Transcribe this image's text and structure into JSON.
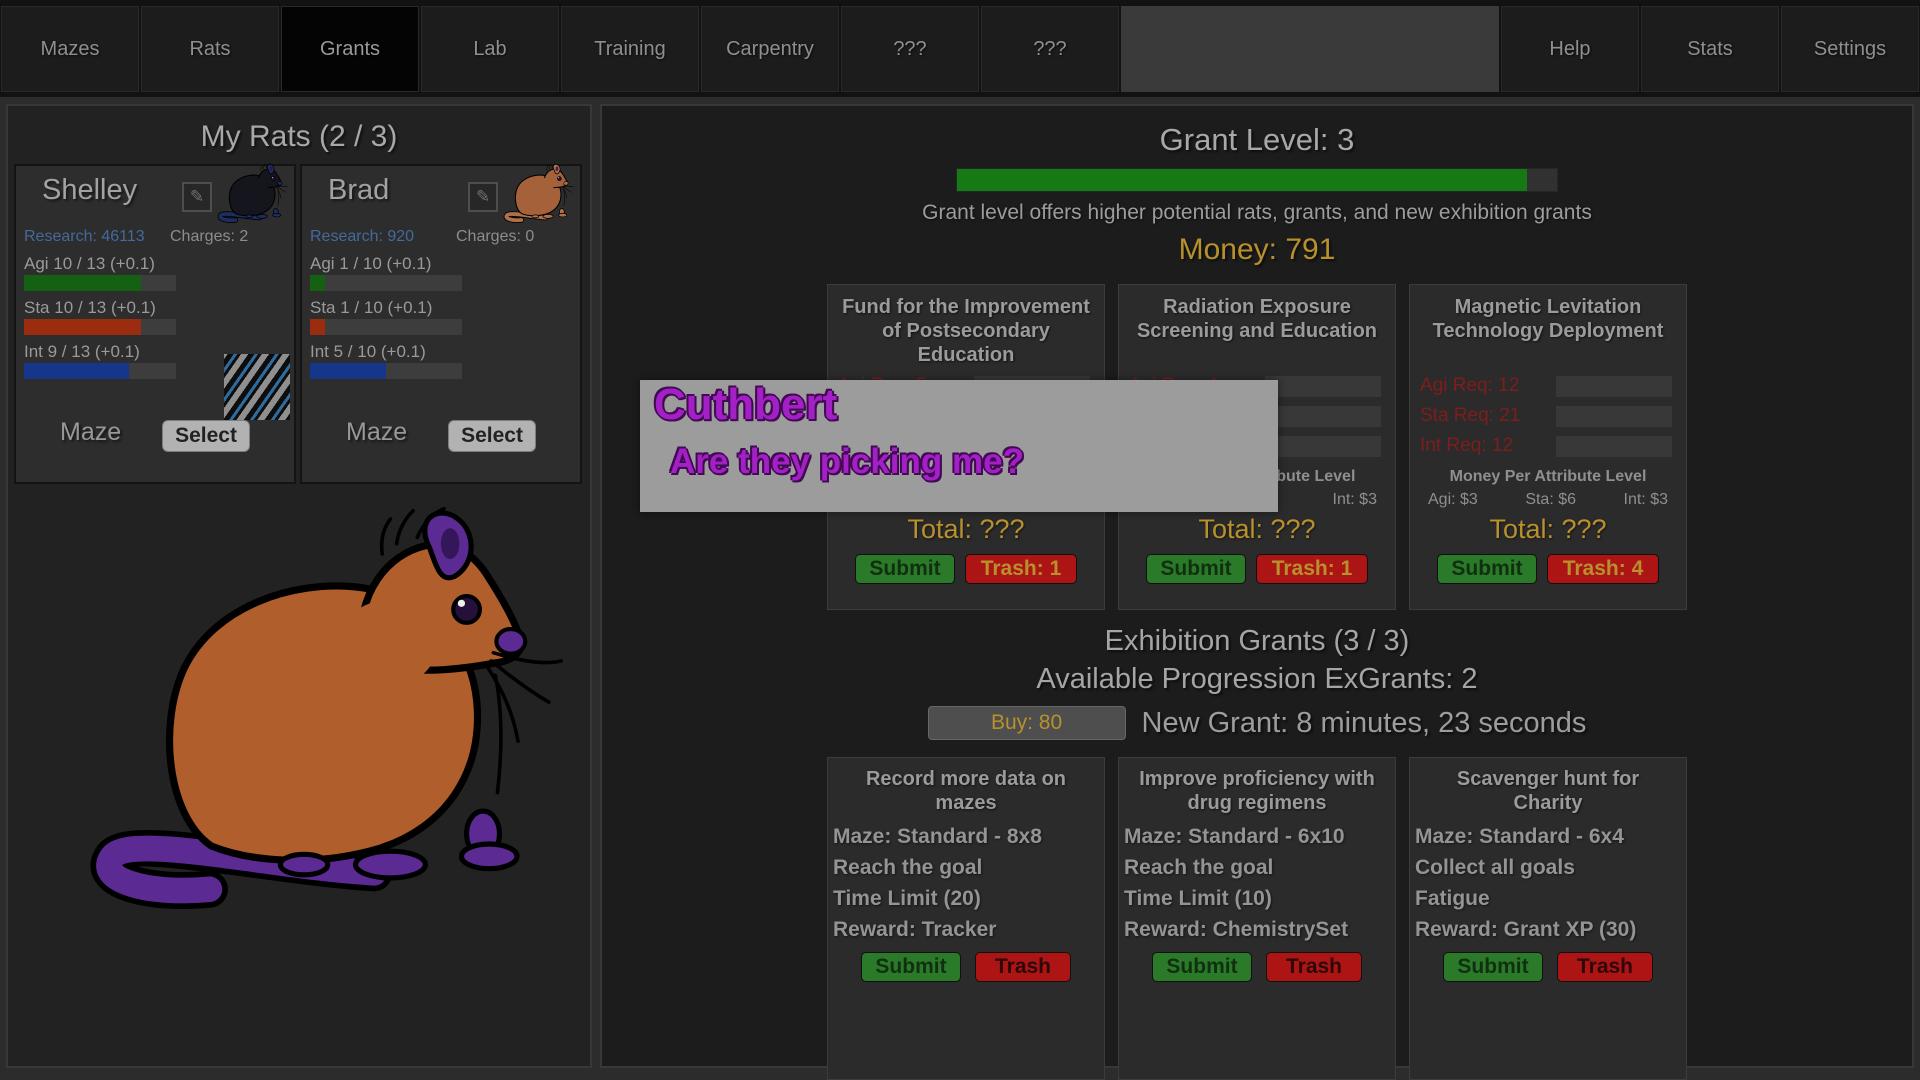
{
  "colors": {
    "level-green": "#157a15",
    "money-gold": "#b8912c",
    "link-blue": "#44699d",
    "req-red": "#7e1d1d",
    "submit-green": "#2a7a2a",
    "trash-red": "#ad1414",
    "popup-purple": "#a320c6",
    "bar-agi": "#146114",
    "bar-sta": "#9c2c10",
    "bar-int": "#16368c",
    "rat-shelley-fur": "#15151d",
    "rat-shelley-accent": "#1c2d5e",
    "rat-brad-fur": "#a5613a",
    "rat-brad-accent": "#b0714a",
    "rat-big-fur": "#b05f2c",
    "rat-big-accent": "#5b2a92"
  },
  "icons": {
    "edit": "✎"
  },
  "nav": {
    "tabs": [
      "Mazes",
      "Rats",
      "Grants",
      "Lab",
      "Training",
      "Carpentry",
      "???",
      "???"
    ],
    "right_tabs": [
      "Help",
      "Stats",
      "Settings"
    ],
    "active": "Grants"
  },
  "rats_panel": {
    "title": "My Rats (2 / 3)",
    "maze_label": "Maze",
    "select_label": "Select",
    "cards": [
      {
        "name": "Shelley",
        "research": "Research: 46113",
        "charges": "Charges: 2",
        "stats": [
          {
            "label": "Agi 10 / 13 (+0.1)",
            "pct": 77
          },
          {
            "label": "Sta 10 / 13 (+0.1)",
            "pct": 77
          },
          {
            "label": "Int 9 / 13 (+0.1)",
            "pct": 69
          }
        ]
      },
      {
        "name": "Brad",
        "research": "Research: 920",
        "charges": "Charges: 0",
        "stats": [
          {
            "label": "Agi 1 / 10 (+0.1)",
            "pct": 10
          },
          {
            "label": "Sta 1 / 10 (+0.1)",
            "pct": 10
          },
          {
            "label": "Int 5 / 10 (+0.1)",
            "pct": 50
          }
        ]
      }
    ]
  },
  "grant_panel": {
    "title": "Grant Level: 3",
    "progress_pct": 95,
    "subtitle": "Grant level offers higher potential rats, grants, and new exhibition grants",
    "money": "Money: 791",
    "grants": [
      {
        "title": "Fund for the Improvement of Postsecondary Education",
        "reqs": [
          {
            "label": "Agi Req: 5"
          },
          {
            "label": ""
          },
          {
            "label": ""
          }
        ],
        "money_header": "",
        "money_values": [
          "",
          "",
          ""
        ],
        "total": "Total: ???",
        "submit": "Submit",
        "trash": "Trash: 1"
      },
      {
        "title": "Radiation Exposure Screening and Education",
        "reqs": [
          {
            "label": "Agi Req: 4"
          },
          {
            "label": ""
          },
          {
            "label": ""
          }
        ],
        "money_header": "Money Per Attribute Level",
        "money_values": [
          "",
          "",
          "Int: $3"
        ],
        "total": "Total: ???",
        "submit": "Submit",
        "trash": "Trash: 1"
      },
      {
        "title": "Magnetic Levitation Technology Deployment",
        "reqs": [
          {
            "label": "Agi Req: 12"
          },
          {
            "label": "Sta Req: 21"
          },
          {
            "label": "Int Req: 12"
          }
        ],
        "money_header": "Money Per Attribute Level",
        "money_values": [
          "Agi: $3",
          "Sta: $6",
          "Int: $3"
        ],
        "total": "Total: ???",
        "submit": "Submit",
        "trash": "Trash: 4"
      }
    ]
  },
  "popup": {
    "title": "Cuthbert",
    "message": "Are they picking me?"
  },
  "exhibition": {
    "title": "Exhibition Grants (3 / 3)",
    "available": "Available Progression ExGrants: 2",
    "buy_label": "Buy: 80",
    "new_grant": "New Grant: 8 minutes, 23 seconds",
    "cards": [
      {
        "title": "Record more data on mazes",
        "rows": [
          "Maze: Standard - 8x8",
          "Reach the goal",
          "Time Limit (20)",
          "Reward: Tracker"
        ],
        "submit": "Submit",
        "trash": "Trash"
      },
      {
        "title": "Improve proficiency with drug regimens",
        "rows": [
          "Maze: Standard - 6x10",
          "Reach the goal",
          "Time Limit (10)",
          "Reward: ChemistrySet"
        ],
        "submit": "Submit",
        "trash": "Trash"
      },
      {
        "title": "Scavenger hunt for Charity",
        "rows": [
          "Maze: Standard - 6x4",
          "Collect all goals",
          "Fatigue",
          "Reward: Grant XP (30)"
        ],
        "submit": "Submit",
        "trash": "Trash"
      }
    ]
  }
}
